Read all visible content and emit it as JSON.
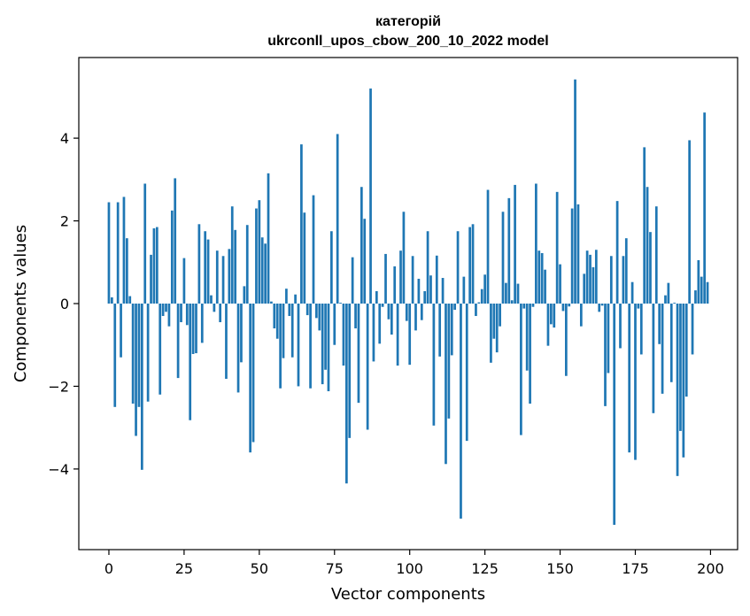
{
  "chart_data": {
    "type": "bar",
    "title_line1": "категорій",
    "title_line2": "ukrconll_upos_cbow_200_10_2022 model",
    "xlabel": "Vector components",
    "ylabel": "Components values",
    "xlim": [
      -10,
      209
    ],
    "ylim": [
      -5.95,
      5.95
    ],
    "xticks": [
      0,
      25,
      50,
      75,
      100,
      125,
      150,
      175,
      200
    ],
    "xtick_labels": [
      "0",
      "25",
      "50",
      "75",
      "100",
      "125",
      "150",
      "175",
      "200"
    ],
    "yticks": [
      -4,
      -2,
      0,
      2,
      4
    ],
    "ytick_labels": [
      "−4",
      "−2",
      "0",
      "2",
      "4"
    ],
    "grid": false,
    "bar_color": "#1f77b4",
    "x": [
      0,
      1,
      2,
      3,
      4,
      5,
      6,
      7,
      8,
      9,
      10,
      11,
      12,
      13,
      14,
      15,
      16,
      17,
      18,
      19,
      20,
      21,
      22,
      23,
      24,
      25,
      26,
      27,
      28,
      29,
      30,
      31,
      32,
      33,
      34,
      35,
      36,
      37,
      38,
      39,
      40,
      41,
      42,
      43,
      44,
      45,
      46,
      47,
      48,
      49,
      50,
      51,
      52,
      53,
      54,
      55,
      56,
      57,
      58,
      59,
      60,
      61,
      62,
      63,
      64,
      65,
      66,
      67,
      68,
      69,
      70,
      71,
      72,
      73,
      74,
      75,
      76,
      77,
      78,
      79,
      80,
      81,
      82,
      83,
      84,
      85,
      86,
      87,
      88,
      89,
      90,
      91,
      92,
      93,
      94,
      95,
      96,
      97,
      98,
      99,
      100,
      101,
      102,
      103,
      104,
      105,
      106,
      107,
      108,
      109,
      110,
      111,
      112,
      113,
      114,
      115,
      116,
      117,
      118,
      119,
      120,
      121,
      122,
      123,
      124,
      125,
      126,
      127,
      128,
      129,
      130,
      131,
      132,
      133,
      134,
      135,
      136,
      137,
      138,
      139,
      140,
      141,
      142,
      143,
      144,
      145,
      146,
      147,
      148,
      149,
      150,
      151,
      152,
      153,
      154,
      155,
      156,
      157,
      158,
      159,
      160,
      161,
      162,
      163,
      164,
      165,
      166,
      167,
      168,
      169,
      170,
      171,
      172,
      173,
      174,
      175,
      176,
      177,
      178,
      179,
      180,
      181,
      182,
      183,
      184,
      185,
      186,
      187,
      188,
      189,
      190,
      191,
      192,
      193,
      194,
      195,
      196,
      197,
      198,
      199
    ],
    "values": [
      2.45,
      0.15,
      -2.5,
      2.45,
      -1.3,
      2.58,
      1.58,
      0.18,
      -2.42,
      -3.2,
      -2.5,
      -4.02,
      2.9,
      -2.37,
      1.18,
      1.82,
      1.85,
      -2.2,
      -0.3,
      -0.2,
      -0.55,
      2.25,
      3.03,
      -1.8,
      -0.45,
      1.1,
      -0.52,
      -2.82,
      -1.22,
      -1.2,
      1.92,
      -0.95,
      1.75,
      1.55,
      0.2,
      -0.2,
      1.28,
      -0.45,
      1.15,
      -1.82,
      1.32,
      2.35,
      1.78,
      -2.15,
      -1.42,
      0.42,
      1.9,
      -3.6,
      -3.35,
      2.3,
      2.5,
      1.6,
      1.45,
      3.15,
      0.05,
      -0.6,
      -0.85,
      -2.05,
      -1.32,
      0.36,
      -0.3,
      -1.3,
      0.22,
      -2.0,
      3.85,
      2.2,
      -0.28,
      -2.05,
      2.62,
      -0.35,
      -0.65,
      -1.95,
      -1.6,
      -2.12,
      1.75,
      -1.0,
      4.1,
      0.02,
      -1.5,
      -4.35,
      -3.25,
      1.12,
      -0.6,
      -2.4,
      2.82,
      2.05,
      -3.05,
      5.2,
      -1.4,
      0.3,
      -0.97,
      -0.08,
      1.2,
      -0.38,
      -0.75,
      0.9,
      -1.5,
      1.28,
      2.22,
      -0.42,
      -1.48,
      1.15,
      -0.65,
      0.6,
      -0.4,
      0.3,
      1.75,
      0.68,
      -2.95,
      1.16,
      -1.28,
      0.62,
      -3.88,
      -2.78,
      -1.25,
      -0.15,
      1.75,
      -5.2,
      0.65,
      -3.32,
      1.85,
      1.92,
      -0.3,
      0.03,
      0.35,
      0.7,
      2.75,
      -1.43,
      -0.85,
      -1.18,
      -0.55,
      2.22,
      0.5,
      2.55,
      0.08,
      2.87,
      0.48,
      -3.18,
      -0.12,
      -1.62,
      -2.42,
      -0.08,
      2.9,
      1.28,
      1.22,
      0.82,
      -1.02,
      -0.5,
      -0.58,
      2.7,
      0.95,
      -0.18,
      -1.75,
      -0.07,
      2.3,
      5.42,
      2.4,
      -0.55,
      0.72,
      1.28,
      1.18,
      0.88,
      1.3,
      -0.2,
      -0.05,
      -2.48,
      -1.68,
      1.15,
      -5.35,
      2.48,
      -1.08,
      1.15,
      1.58,
      -3.6,
      0.52,
      -3.78,
      -0.12,
      -1.23,
      3.78,
      2.82,
      1.73,
      -2.65,
      2.35,
      -0.98,
      -2.18,
      0.2,
      0.5,
      -1.9,
      0.02,
      -4.17,
      -3.08,
      -3.72,
      -2.25,
      3.95,
      -1.23,
      0.32,
      1.05,
      0.65,
      4.62,
      0.52
    ]
  }
}
